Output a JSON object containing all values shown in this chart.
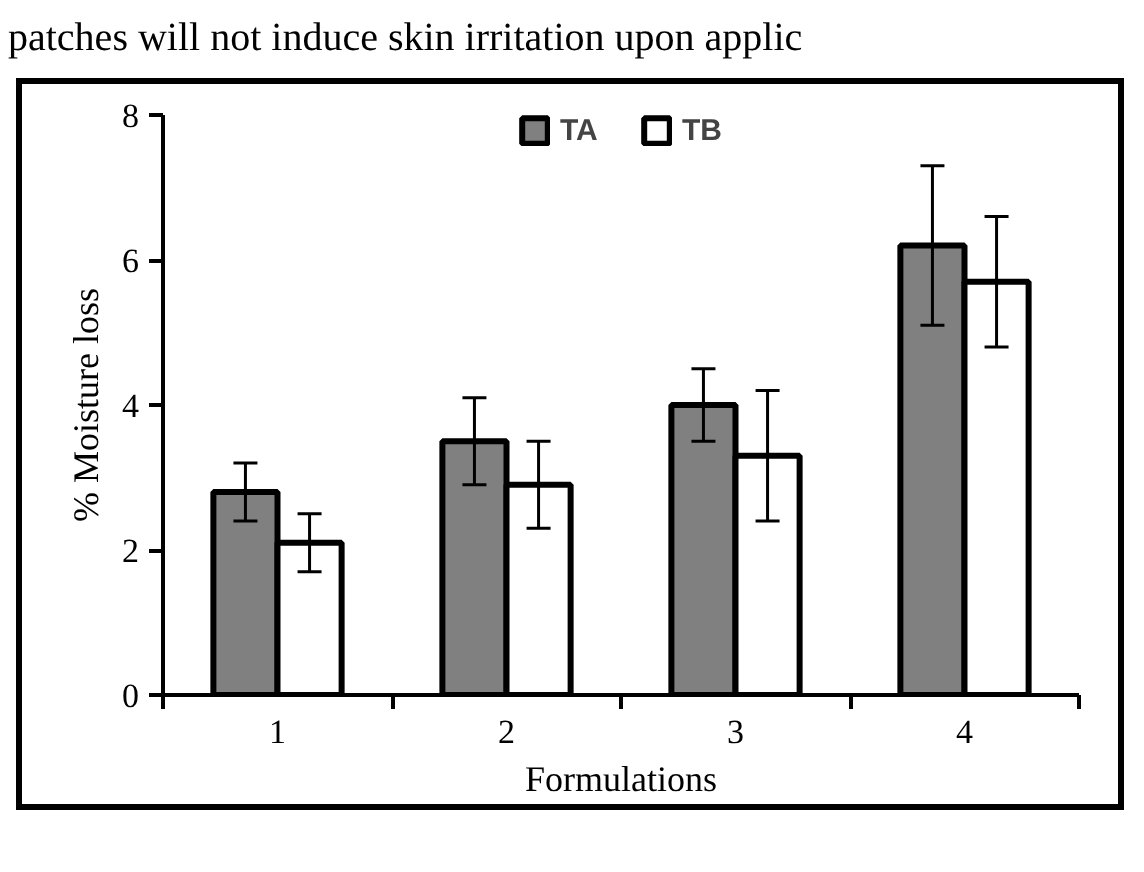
{
  "chart_data": {
    "type": "bar",
    "annotations": [
      "patches will not induce skin irritation upon applic"
    ],
    "xlabel": "Formulations",
    "ylabel": "% Moisture loss",
    "categories": [
      "1",
      "2",
      "3",
      "4"
    ],
    "series": [
      {
        "name": "TA",
        "color": "#808080",
        "values": [
          2.8,
          3.5,
          4.0,
          6.2
        ],
        "errors": [
          0.4,
          0.6,
          0.5,
          1.1
        ]
      },
      {
        "name": "TB",
        "color": "#ffffff",
        "values": [
          2.1,
          2.9,
          3.3,
          5.7
        ],
        "errors": [
          0.4,
          0.6,
          0.9,
          0.9
        ]
      }
    ],
    "ylim": [
      0,
      8
    ],
    "yticks": [
      0,
      2,
      4,
      6,
      8
    ],
    "grid": false,
    "legend": "top"
  }
}
